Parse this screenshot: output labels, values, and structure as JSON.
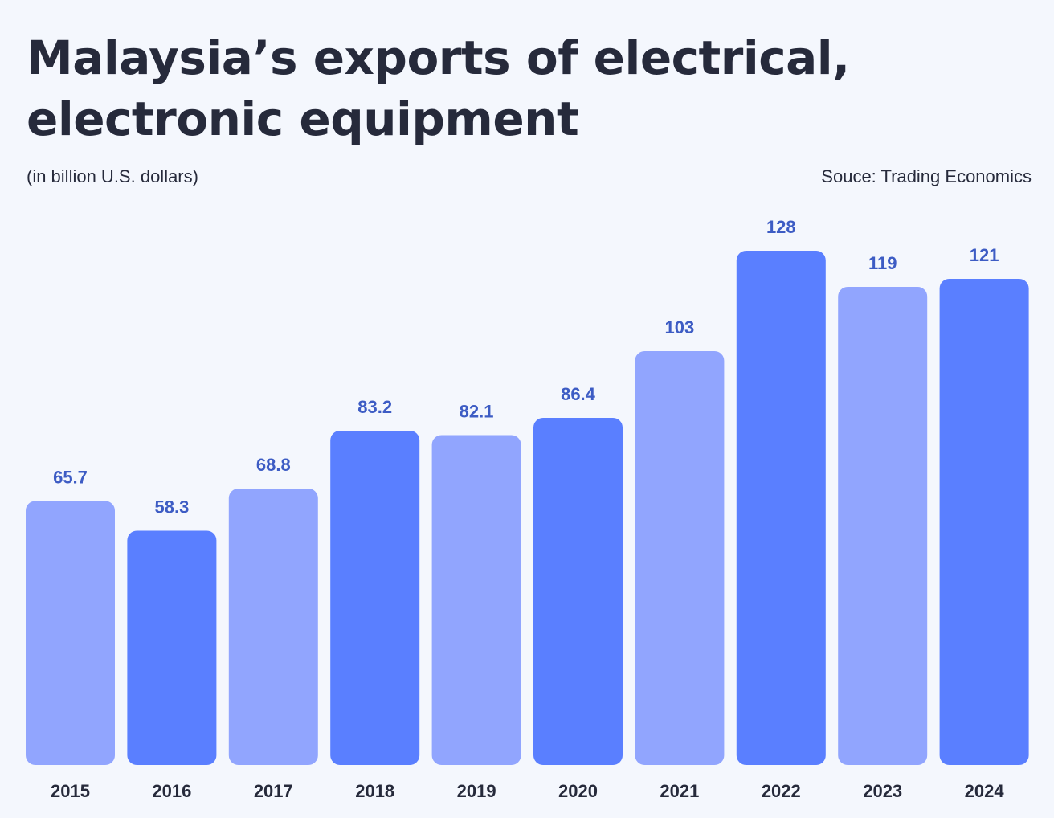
{
  "chart_data": {
    "type": "bar",
    "title": "Malaysia’s exports of electrical, electronic equipment",
    "subtitle": "(in billion U.S. dollars)",
    "source": "Souce: Trading Economics",
    "xlabel": "",
    "ylabel": "",
    "categories": [
      "2015",
      "2016",
      "2017",
      "2018",
      "2019",
      "2020",
      "2021",
      "2022",
      "2023",
      "2024"
    ],
    "values": [
      65.7,
      58.3,
      68.8,
      83.2,
      82.1,
      86.4,
      103,
      128,
      119,
      121
    ],
    "value_labels": [
      "65.7",
      "58.3",
      "68.8",
      "83.2",
      "82.1",
      "86.4",
      "103",
      "128",
      "119",
      "121"
    ],
    "ylim": [
      0,
      128
    ],
    "grid": false,
    "legend": "none",
    "colors": {
      "light": "#91a5fe",
      "dark": "#5a7fff",
      "value_text": "#3d5cc4",
      "background": "#f4f7fd"
    },
    "bar_shades": [
      "light",
      "dark",
      "light",
      "dark",
      "light",
      "dark",
      "light",
      "dark",
      "light",
      "dark"
    ]
  }
}
